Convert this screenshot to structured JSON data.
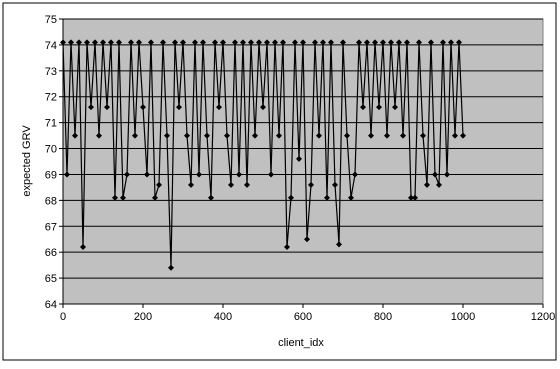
{
  "chart_data": {
    "type": "line",
    "x_label": "client_idx",
    "y_label": "expected GRV",
    "x": [
      0,
      10,
      20,
      30,
      40,
      50,
      60,
      70,
      80,
      90,
      100,
      110,
      120,
      130,
      140,
      150,
      160,
      170,
      180,
      190,
      200,
      210,
      220,
      230,
      240,
      250,
      260,
      270,
      280,
      290,
      300,
      310,
      320,
      330,
      340,
      350,
      360,
      370,
      380,
      390,
      400,
      410,
      420,
      430,
      440,
      450,
      460,
      470,
      480,
      490,
      500,
      510,
      520,
      530,
      540,
      550,
      560,
      570,
      580,
      590,
      600,
      610,
      620,
      630,
      640,
      650,
      660,
      670,
      680,
      690,
      700,
      710,
      720,
      730,
      740,
      750,
      760,
      770,
      780,
      790,
      800,
      810,
      820,
      830,
      840,
      850,
      860,
      870,
      880,
      890,
      900,
      910,
      920,
      930,
      940,
      950,
      960,
      970,
      980,
      990,
      1000
    ],
    "series": [
      {
        "color": "#000000",
        "values": [
          74.1,
          69,
          74.1,
          70.5,
          74.1,
          66.2,
          74.1,
          71.6,
          74.1,
          70.5,
          74.1,
          71.6,
          74.1,
          68.1,
          74.1,
          68.1,
          69,
          74.1,
          70.5,
          74.1,
          71.6,
          69,
          74.1,
          68.1,
          68.6,
          74.1,
          70.5,
          65.4,
          74.1,
          71.6,
          74.1,
          70.5,
          68.6,
          74.1,
          69,
          74.1,
          70.5,
          68.1,
          74.1,
          71.6,
          74.1,
          70.5,
          68.6,
          74.1,
          69,
          74.1,
          68.6,
          74.1,
          70.5,
          74.1,
          71.6,
          74.1,
          69,
          74.1,
          70.5,
          74.1,
          66.2,
          68.1,
          74.1,
          69.6,
          74.1,
          66.5,
          68.6,
          74.1,
          70.5,
          74.1,
          68.1,
          74.1,
          68.6,
          66.3,
          74.1,
          70.5,
          68.1,
          69,
          74.1,
          71.6,
          74.1,
          70.5,
          74.1,
          71.6,
          74.1,
          70.5,
          74.1,
          71.6,
          74.1,
          70.5,
          74.1,
          68.1,
          68.1,
          74.1,
          70.5,
          68.6,
          74.1,
          69,
          68.6,
          74.1,
          69,
          74.1,
          70.5,
          74.1,
          70.5
        ]
      }
    ],
    "xlim": [
      0,
      1200
    ],
    "xticks": [
      0,
      200,
      400,
      600,
      800,
      1000,
      1200
    ],
    "ylim": [
      64,
      75
    ],
    "yticks": [
      64,
      65,
      66,
      67,
      68,
      69,
      70,
      71,
      72,
      73,
      74,
      75
    ],
    "grid": true,
    "plot_background": "#c0c0c0"
  }
}
